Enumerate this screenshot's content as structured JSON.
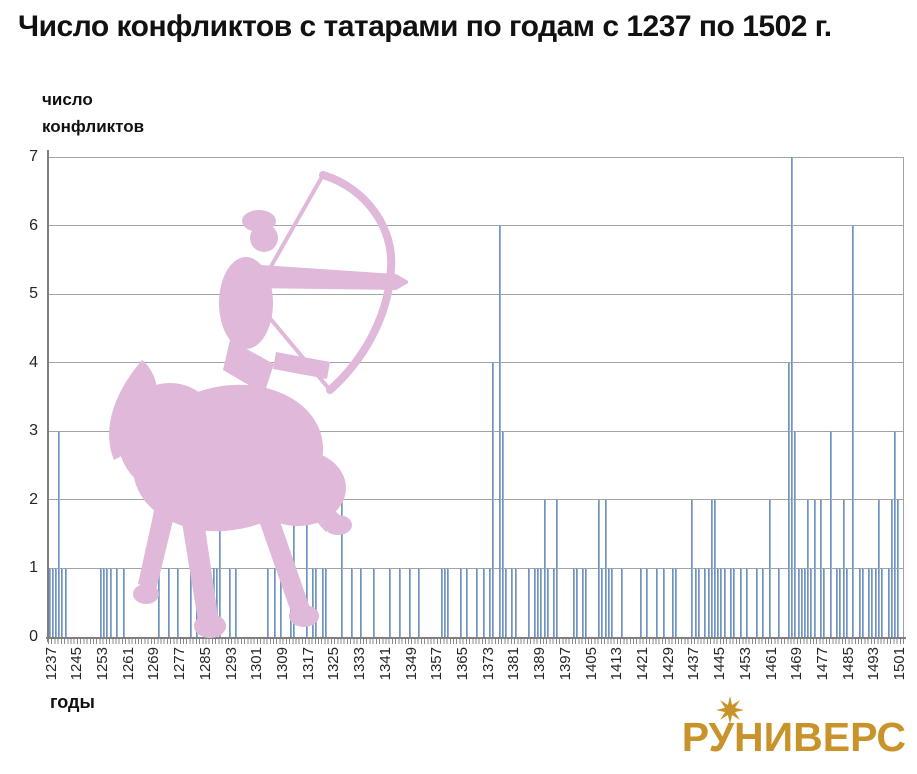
{
  "title": "Число конфликтов с татарами по годам с 1237 по 1502 г.",
  "y_axis_title_line1": "число",
  "y_axis_title_line2": "конфликтов",
  "x_axis_title": "годы",
  "logo": {
    "text": "РУНИВЕРС",
    "icon": "eight-point-star",
    "color": "#c8932b"
  },
  "colors": {
    "bar": "#7397c4",
    "bar_edge": "#5f86b5",
    "gridline": "#a3a3a3",
    "axis": "#7f7f7f",
    "horse_silhouette": "#dfb8da",
    "title_text": "#111111",
    "logo_gold": "#c8932b"
  },
  "chart_data": {
    "type": "bar",
    "title": "Число конфликтов с татарами по годам с 1237 по 1502 г.",
    "xlabel": "годы",
    "ylabel": "число конфликтов",
    "x_range": [
      1237,
      1502
    ],
    "ylim": [
      0,
      7
    ],
    "y_ticks": [
      0,
      1,
      2,
      3,
      4,
      5,
      6,
      7
    ],
    "grid": true,
    "legend": false,
    "x_tick_labels": [
      "1237",
      "1245",
      "1253",
      "1261",
      "1269",
      "1277",
      "1285",
      "1293",
      "1301",
      "1309",
      "1317",
      "1325",
      "1333",
      "1341",
      "1349",
      "1357",
      "1365",
      "1373",
      "1381",
      "1389",
      "1397",
      "1405",
      "1413",
      "1421",
      "1429",
      "1437",
      "1445",
      "1453",
      "1461",
      "1469",
      "1477",
      "1485",
      "1493",
      "1501"
    ],
    "values_note": "years not listed have value 0",
    "values_by_year": {
      "1237": 1,
      "1238": 1,
      "1239": 1,
      "1240": 3,
      "1241": 1,
      "1242": 1,
      "1253": 1,
      "1254": 1,
      "1255": 1,
      "1256": 1,
      "1258": 1,
      "1260": 1,
      "1271": 1,
      "1274": 1,
      "1277": 1,
      "1281": 1,
      "1283": 1,
      "1285": 1,
      "1287": 1,
      "1288": 1,
      "1289": 1,
      "1290": 2,
      "1293": 1,
      "1295": 1,
      "1305": 1,
      "1307": 1,
      "1309": 1,
      "1312": 1,
      "1313": 2,
      "1317": 2,
      "1319": 1,
      "1320": 1,
      "1322": 1,
      "1323": 1,
      "1328": 2,
      "1331": 1,
      "1334": 1,
      "1338": 1,
      "1343": 1,
      "1346": 1,
      "1349": 1,
      "1352": 1,
      "1359": 1,
      "1360": 1,
      "1361": 1,
      "1365": 1,
      "1367": 1,
      "1370": 1,
      "1372": 1,
      "1374": 1,
      "1375": 4,
      "1377": 6,
      "1378": 3,
      "1379": 1,
      "1381": 1,
      "1382": 1,
      "1386": 1,
      "1388": 1,
      "1389": 1,
      "1390": 1,
      "1391": 2,
      "1392": 1,
      "1394": 1,
      "1395": 2,
      "1400": 1,
      "1401": 1,
      "1403": 1,
      "1404": 1,
      "1408": 2,
      "1409": 1,
      "1410": 2,
      "1411": 1,
      "1412": 1,
      "1415": 1,
      "1421": 1,
      "1423": 1,
      "1426": 1,
      "1428": 1,
      "1431": 1,
      "1432": 1,
      "1437": 2,
      "1438": 1,
      "1439": 1,
      "1441": 1,
      "1442": 1,
      "1443": 2,
      "1444": 2,
      "1445": 1,
      "1446": 1,
      "1447": 1,
      "1449": 1,
      "1450": 1,
      "1452": 1,
      "1454": 1,
      "1457": 1,
      "1459": 1,
      "1461": 2,
      "1464": 1,
      "1467": 4,
      "1468": 7,
      "1469": 3,
      "1470": 1,
      "1471": 1,
      "1472": 1,
      "1473": 2,
      "1474": 1,
      "1475": 2,
      "1477": 2,
      "1478": 1,
      "1480": 3,
      "1482": 1,
      "1483": 1,
      "1484": 2,
      "1485": 1,
      "1487": 6,
      "1489": 1,
      "1490": 1,
      "1492": 1,
      "1493": 1,
      "1494": 1,
      "1495": 2,
      "1496": 1,
      "1498": 1,
      "1499": 2,
      "1500": 3,
      "1501": 2
    }
  }
}
